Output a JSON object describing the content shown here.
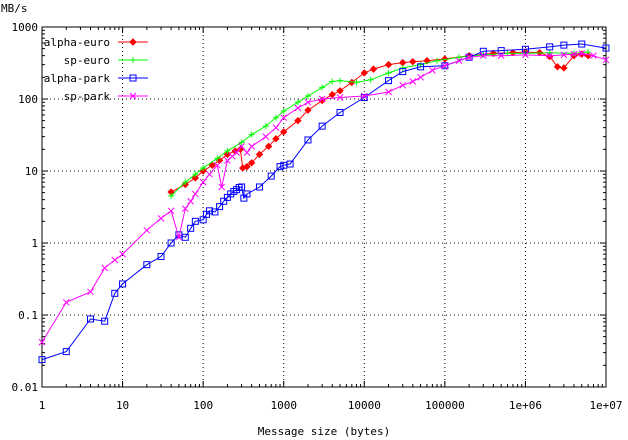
{
  "chart_data": {
    "type": "line",
    "xlabel": "Message size (bytes)",
    "ylabel": "MB/s",
    "xscale": "log",
    "yscale": "log",
    "xlim": [
      1,
      10000000
    ],
    "ylim": [
      0.01,
      1000
    ],
    "grid": true,
    "legend_position": "top-left",
    "x_tick_labels": [
      "1",
      "10",
      "100",
      "1000",
      "10000",
      "100000",
      "1e+06",
      "1e+07"
    ],
    "x_ticks": [
      1,
      10,
      100,
      1000,
      10000,
      100000,
      1000000,
      10000000
    ],
    "y_tick_labels": [
      "0.01",
      "0.1",
      "1",
      "10",
      "100",
      "1000"
    ],
    "y_ticks": [
      0.01,
      0.1,
      1,
      10,
      100,
      1000
    ],
    "series": [
      {
        "name": "alpha-euro",
        "color": "#ff0000",
        "marker": "diamond",
        "points": [
          [
            40,
            5.1
          ],
          [
            60,
            6.5
          ],
          [
            80,
            8
          ],
          [
            100,
            10
          ],
          [
            130,
            12
          ],
          [
            160,
            14
          ],
          [
            200,
            17
          ],
          [
            250,
            19
          ],
          [
            290,
            20
          ],
          [
            310,
            11
          ],
          [
            350,
            11.5
          ],
          [
            400,
            13
          ],
          [
            500,
            17
          ],
          [
            650,
            22
          ],
          [
            800,
            28
          ],
          [
            1000,
            35
          ],
          [
            1500,
            50
          ],
          [
            2000,
            70
          ],
          [
            3000,
            95
          ],
          [
            4000,
            115
          ],
          [
            5000,
            130
          ],
          [
            7000,
            170
          ],
          [
            10000,
            230
          ],
          [
            13000,
            260
          ],
          [
            20000,
            300
          ],
          [
            30000,
            320
          ],
          [
            40000,
            330
          ],
          [
            60000,
            340
          ],
          [
            100000,
            360
          ],
          [
            200000,
            400
          ],
          [
            400000,
            430
          ],
          [
            700000,
            440
          ],
          [
            1000000,
            450
          ],
          [
            1500000,
            440
          ],
          [
            2000000,
            390
          ],
          [
            2500000,
            280
          ],
          [
            3000000,
            270
          ],
          [
            4000000,
            400
          ],
          [
            5000000,
            420
          ],
          [
            6000000,
            400
          ]
        ]
      },
      {
        "name": "sp-euro",
        "color": "#00ff00",
        "marker": "plus",
        "points": [
          [
            40,
            4.5
          ],
          [
            60,
            7
          ],
          [
            80,
            9
          ],
          [
            100,
            11
          ],
          [
            150,
            15
          ],
          [
            200,
            19
          ],
          [
            300,
            25
          ],
          [
            400,
            32
          ],
          [
            600,
            42
          ],
          [
            800,
            55
          ],
          [
            1000,
            68
          ],
          [
            1500,
            90
          ],
          [
            2000,
            110
          ],
          [
            3000,
            145
          ],
          [
            4000,
            175
          ],
          [
            5000,
            180
          ],
          [
            8000,
            170
          ],
          [
            12000,
            185
          ],
          [
            20000,
            230
          ],
          [
            30000,
            270
          ],
          [
            50000,
            300
          ],
          [
            80000,
            340
          ],
          [
            150000,
            380
          ],
          [
            300000,
            410
          ],
          [
            600000,
            430
          ],
          [
            1000000,
            430
          ],
          [
            2000000,
            440
          ],
          [
            4000000,
            430
          ],
          [
            6000000,
            450
          ]
        ]
      },
      {
        "name": "alpha-park",
        "color": "#0000ff",
        "marker": "square",
        "points": [
          [
            1,
            0.024
          ],
          [
            2,
            0.031
          ],
          [
            4,
            0.088
          ],
          [
            6,
            0.082
          ],
          [
            8,
            0.2
          ],
          [
            10,
            0.27
          ],
          [
            20,
            0.5
          ],
          [
            30,
            0.65
          ],
          [
            40,
            1
          ],
          [
            50,
            1.3
          ],
          [
            60,
            1.2
          ],
          [
            70,
            1.6
          ],
          [
            80,
            2
          ],
          [
            100,
            2.1
          ],
          [
            110,
            2.5
          ],
          [
            120,
            2.8
          ],
          [
            140,
            2.7
          ],
          [
            160,
            3.2
          ],
          [
            180,
            3.8
          ],
          [
            200,
            4.3
          ],
          [
            220,
            4.8
          ],
          [
            240,
            5.2
          ],
          [
            260,
            5.5
          ],
          [
            280,
            5.9
          ],
          [
            300,
            6
          ],
          [
            320,
            4.2
          ],
          [
            350,
            4.8
          ],
          [
            500,
            6
          ],
          [
            700,
            8.5
          ],
          [
            900,
            11.5
          ],
          [
            1000,
            12
          ],
          [
            1200,
            12.5
          ],
          [
            2000,
            27
          ],
          [
            3000,
            42
          ],
          [
            5000,
            65
          ],
          [
            10000,
            105
          ],
          [
            20000,
            180
          ],
          [
            30000,
            240
          ],
          [
            50000,
            280
          ],
          [
            100000,
            290
          ],
          [
            200000,
            380
          ],
          [
            300000,
            460
          ],
          [
            500000,
            470
          ],
          [
            1000000,
            490
          ],
          [
            2000000,
            530
          ],
          [
            3000000,
            560
          ],
          [
            5000000,
            580
          ],
          [
            10000000,
            510
          ]
        ]
      },
      {
        "name": "sp-park",
        "color": "#ff00ff",
        "marker": "cross",
        "points": [
          [
            1,
            0.042
          ],
          [
            2,
            0.15
          ],
          [
            4,
            0.21
          ],
          [
            6,
            0.45
          ],
          [
            8,
            0.58
          ],
          [
            10,
            0.7
          ],
          [
            20,
            1.5
          ],
          [
            30,
            2.2
          ],
          [
            40,
            2.8
          ],
          [
            50,
            1.2
          ],
          [
            60,
            3
          ],
          [
            70,
            3.8
          ],
          [
            80,
            4.8
          ],
          [
            100,
            7
          ],
          [
            120,
            9
          ],
          [
            150,
            12
          ],
          [
            170,
            6
          ],
          [
            200,
            14
          ],
          [
            230,
            16
          ],
          [
            260,
            18
          ],
          [
            300,
            22
          ],
          [
            350,
            18
          ],
          [
            400,
            22
          ],
          [
            600,
            30
          ],
          [
            800,
            40
          ],
          [
            1000,
            55
          ],
          [
            1500,
            75
          ],
          [
            2000,
            90
          ],
          [
            3000,
            100
          ],
          [
            5000,
            105
          ],
          [
            10000,
            110
          ],
          [
            20000,
            125
          ],
          [
            30000,
            155
          ],
          [
            40000,
            175
          ],
          [
            50000,
            200
          ],
          [
            70000,
            250
          ],
          [
            100000,
            290
          ],
          [
            150000,
            340
          ],
          [
            200000,
            380
          ],
          [
            300000,
            400
          ],
          [
            500000,
            400
          ],
          [
            1000000,
            410
          ],
          [
            2000000,
            400
          ],
          [
            3000000,
            410
          ],
          [
            4000000,
            420
          ],
          [
            5000000,
            430
          ],
          [
            7000000,
            400
          ],
          [
            10000000,
            350
          ]
        ]
      }
    ]
  }
}
